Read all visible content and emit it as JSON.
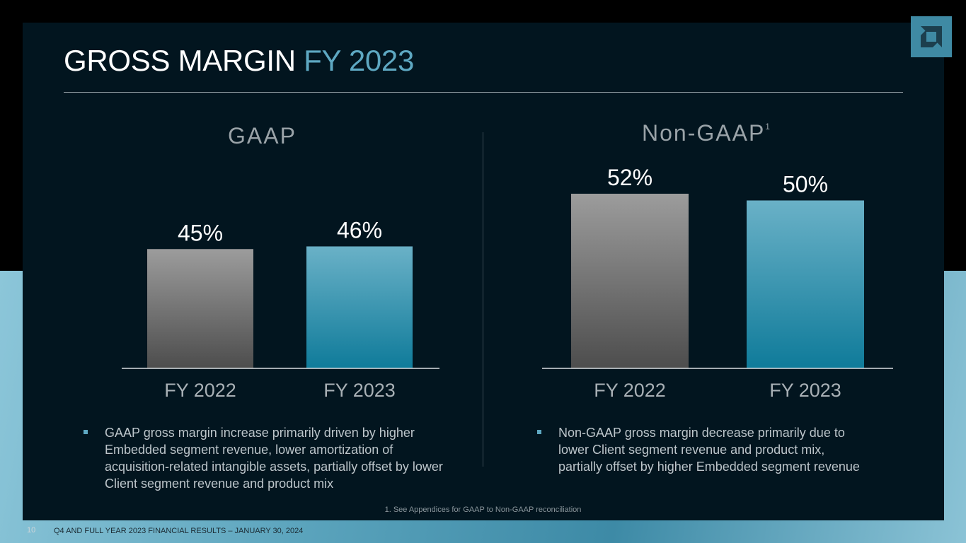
{
  "slide": {
    "title_main": "GROSS MARGIN",
    "title_accent": "FY 2023",
    "footnote": "1. See Appendices for GAAP to Non-GAAP reconciliation",
    "page_number": "10",
    "footer": "Q4 AND FULL YEAR 2023 FINANCIAL RESULTS – JANUARY 30, 2024",
    "logo_icon": "amd-arrow-logo-icon"
  },
  "colors": {
    "accent": "#5ea8c2",
    "panel": "#02151f",
    "bar_prior_top": "#9c9c9c",
    "bar_prior_bottom": "#4d4d4d",
    "bar_current_top": "#6ab1c7",
    "bar_current_bottom": "#0f7b9a"
  },
  "sections": {
    "gaap": {
      "heading": "GAAP",
      "bullet": "GAAP gross margin increase primarily driven by higher Embedded segment revenue, lower amortization of acquisition-related intangible assets, partially offset by lower Client segment revenue and product mix"
    },
    "nongaap": {
      "heading": "Non-GAAP",
      "heading_sup": "1",
      "bullet": "Non-GAAP gross margin decrease primarily due to lower Client segment revenue and product mix, partially offset by higher Embedded segment revenue"
    }
  },
  "chart_data": [
    {
      "type": "bar",
      "title": "GAAP",
      "categories": [
        "FY 2022",
        "FY 2023"
      ],
      "values": [
        45,
        46
      ],
      "labels": [
        "45%",
        "46%"
      ],
      "unit": "%",
      "ylim": [
        0,
        100
      ]
    },
    {
      "type": "bar",
      "title": "Non-GAAP",
      "categories": [
        "FY 2022",
        "FY 2023"
      ],
      "values": [
        52,
        50
      ],
      "labels": [
        "52%",
        "50%"
      ],
      "unit": "%",
      "ylim": [
        0,
        100
      ]
    }
  ]
}
